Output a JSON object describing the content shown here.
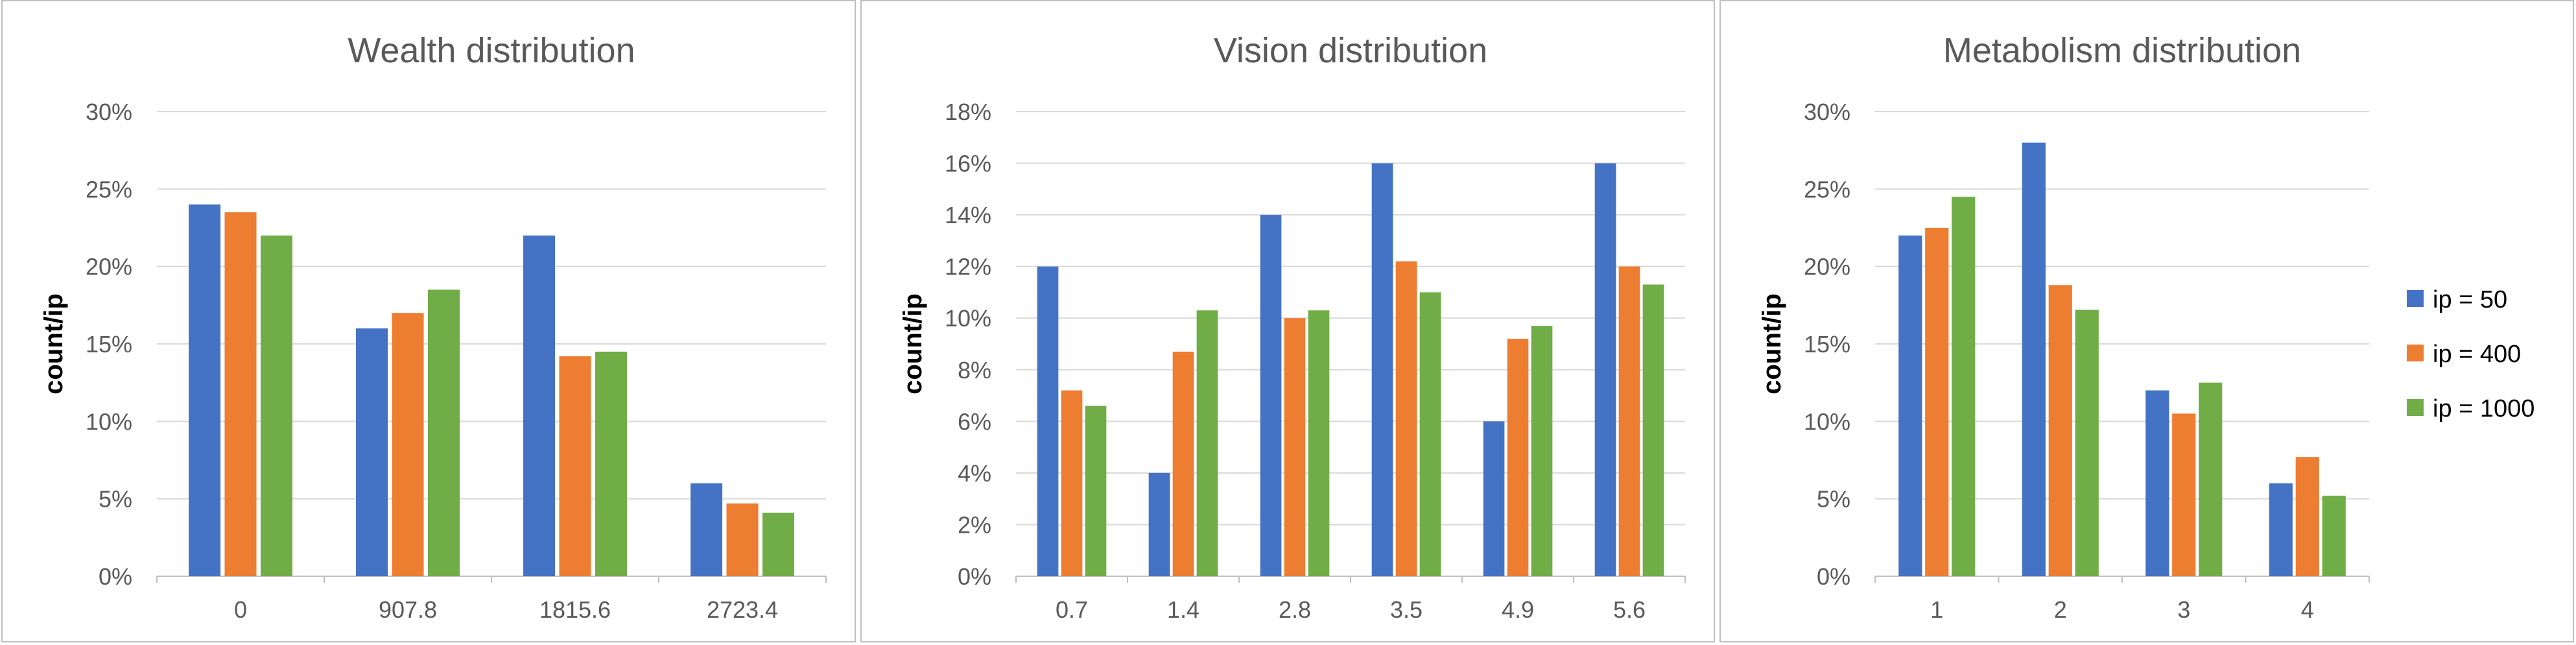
{
  "chart_data": [
    {
      "type": "bar",
      "title": "Wealth distribution",
      "xlabel": "",
      "ylabel": "count/ip",
      "ylim": [
        0,
        30
      ],
      "yticks": [
        "0%",
        "5%",
        "10%",
        "15%",
        "20%",
        "25%",
        "30%"
      ],
      "categories": [
        "0",
        "907.8",
        "1815.6",
        "2723.4"
      ],
      "series": [
        {
          "name": "ip = 50",
          "values": [
            24.0,
            16.0,
            22.0,
            6.0
          ]
        },
        {
          "name": "ip = 400",
          "values": [
            23.5,
            17.0,
            14.2,
            4.7
          ]
        },
        {
          "name": "ip = 1000",
          "values": [
            22.0,
            18.5,
            14.5,
            4.1
          ]
        }
      ],
      "grid": true
    },
    {
      "type": "bar",
      "title": "Vision distribution",
      "xlabel": "",
      "ylabel": "count/ip",
      "ylim": [
        0,
        18
      ],
      "yticks": [
        "0%",
        "2%",
        "4%",
        "6%",
        "8%",
        "10%",
        "12%",
        "14%",
        "16%",
        "18%"
      ],
      "categories": [
        "0.7",
        "1.4",
        "2.8",
        "3.5",
        "4.9",
        "5.6"
      ],
      "series": [
        {
          "name": "ip = 50",
          "values": [
            12.0,
            4.0,
            14.0,
            16.0,
            6.0,
            16.0
          ]
        },
        {
          "name": "ip = 400",
          "values": [
            7.2,
            8.7,
            10.0,
            12.2,
            9.2,
            12.0
          ]
        },
        {
          "name": "ip = 1000",
          "values": [
            6.6,
            10.3,
            10.3,
            11.0,
            9.7,
            11.3
          ]
        }
      ],
      "grid": true
    },
    {
      "type": "bar",
      "title": "Metabolism distribution",
      "xlabel": "",
      "ylabel": "count/ip",
      "ylim": [
        0,
        30
      ],
      "yticks": [
        "0%",
        "5%",
        "10%",
        "15%",
        "20%",
        "25%",
        "30%"
      ],
      "categories": [
        "1",
        "2",
        "3",
        "4"
      ],
      "series": [
        {
          "name": "ip = 50",
          "values": [
            22.0,
            28.0,
            12.0,
            6.0
          ]
        },
        {
          "name": "ip = 400",
          "values": [
            22.5,
            18.8,
            10.5,
            7.7
          ]
        },
        {
          "name": "ip = 1000",
          "values": [
            24.5,
            17.2,
            12.5,
            5.2
          ]
        }
      ],
      "grid": true,
      "legend": "right"
    }
  ],
  "colors": {
    "series": [
      "#4472c4",
      "#ed7d31",
      "#70ad47"
    ],
    "grid": "#d9d9d9",
    "axis": "#bfbfbf",
    "title": "#595959",
    "tick": "#595959",
    "ylabel": "#000000"
  }
}
